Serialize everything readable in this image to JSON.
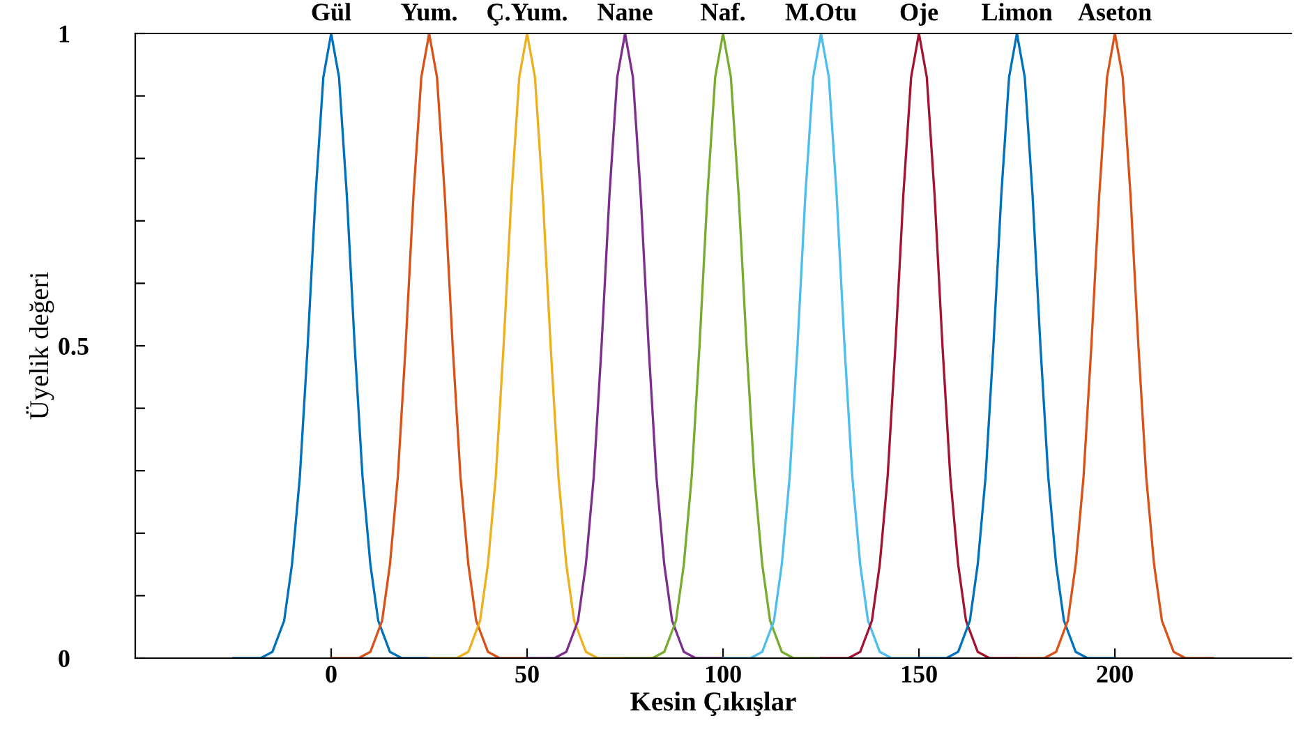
{
  "chart_data": {
    "type": "line",
    "xlabel": "Kesin Çıkışlar",
    "ylabel": "Üyelik değeri",
    "xlim": [
      -50,
      245
    ],
    "ylim": [
      0,
      1
    ],
    "xticks": [
      0,
      50,
      100,
      150,
      200
    ],
    "yticks": [
      0,
      {
        "value": 0.1,
        "label": null
      },
      {
        "value": 0.2,
        "label": null
      },
      {
        "value": 0.3,
        "label": null
      },
      {
        "value": 0.4,
        "label": null
      },
      0.5,
      {
        "value": 0.6,
        "label": null
      },
      {
        "value": 0.7,
        "label": null
      },
      {
        "value": 0.8,
        "label": null
      },
      {
        "value": 0.9,
        "label": null
      },
      1
    ],
    "grid": false,
    "legend": false,
    "marker": "none",
    "line_style": "solid",
    "series": [
      {
        "name": "Gül",
        "color": "#0072bd",
        "x": [
          -25,
          -18,
          -15,
          -12,
          -10,
          -8,
          -6,
          -4,
          -2,
          0,
          2,
          4,
          6,
          8,
          10,
          12,
          15,
          18,
          25
        ],
        "values": [
          0,
          0,
          0.01,
          0.06,
          0.15,
          0.29,
          0.5,
          0.74,
          0.93,
          1,
          0.93,
          0.74,
          0.5,
          0.29,
          0.15,
          0.06,
          0.01,
          0,
          0
        ]
      },
      {
        "name": "Yum.",
        "color": "#d95319",
        "x": [
          0,
          7,
          10,
          13,
          15,
          17,
          19,
          21,
          23,
          25,
          27,
          29,
          31,
          33,
          35,
          37,
          40,
          43,
          50
        ],
        "values": [
          0,
          0,
          0.01,
          0.06,
          0.15,
          0.29,
          0.5,
          0.74,
          0.93,
          1,
          0.93,
          0.74,
          0.5,
          0.29,
          0.15,
          0.06,
          0.01,
          0,
          0
        ]
      },
      {
        "name": "Ç.Yum.",
        "color": "#edb120",
        "x": [
          25,
          32,
          35,
          38,
          40,
          42,
          44,
          46,
          48,
          50,
          52,
          54,
          56,
          58,
          60,
          62,
          65,
          68,
          75
        ],
        "values": [
          0,
          0,
          0.01,
          0.06,
          0.15,
          0.29,
          0.5,
          0.74,
          0.93,
          1,
          0.93,
          0.74,
          0.5,
          0.29,
          0.15,
          0.06,
          0.01,
          0,
          0
        ]
      },
      {
        "name": "Nane",
        "color": "#7e2f8e",
        "x": [
          50,
          57,
          60,
          63,
          65,
          67,
          69,
          71,
          73,
          75,
          77,
          79,
          81,
          83,
          85,
          87,
          90,
          93,
          100
        ],
        "values": [
          0,
          0,
          0.01,
          0.06,
          0.15,
          0.29,
          0.5,
          0.74,
          0.93,
          1,
          0.93,
          0.74,
          0.5,
          0.29,
          0.15,
          0.06,
          0.01,
          0,
          0
        ]
      },
      {
        "name": "Naf.",
        "color": "#77ac30",
        "x": [
          75,
          82,
          85,
          88,
          90,
          92,
          94,
          96,
          98,
          100,
          102,
          104,
          106,
          108,
          110,
          112,
          115,
          118,
          125
        ],
        "values": [
          0,
          0,
          0.01,
          0.06,
          0.15,
          0.29,
          0.5,
          0.74,
          0.93,
          1,
          0.93,
          0.74,
          0.5,
          0.29,
          0.15,
          0.06,
          0.01,
          0,
          0
        ]
      },
      {
        "name": "M.Otu",
        "color": "#4dbeee",
        "x": [
          100,
          107,
          110,
          113,
          115,
          117,
          119,
          121,
          123,
          125,
          127,
          129,
          131,
          133,
          135,
          137,
          140,
          143,
          150
        ],
        "values": [
          0,
          0,
          0.01,
          0.06,
          0.15,
          0.29,
          0.5,
          0.74,
          0.93,
          1,
          0.93,
          0.74,
          0.5,
          0.29,
          0.15,
          0.06,
          0.01,
          0,
          0
        ]
      },
      {
        "name": "Oje",
        "color": "#a2142f",
        "x": [
          125,
          132,
          135,
          138,
          140,
          142,
          144,
          146,
          148,
          150,
          152,
          154,
          156,
          158,
          160,
          162,
          165,
          168,
          175
        ],
        "values": [
          0,
          0,
          0.01,
          0.06,
          0.15,
          0.29,
          0.5,
          0.74,
          0.93,
          1,
          0.93,
          0.74,
          0.5,
          0.29,
          0.15,
          0.06,
          0.01,
          0,
          0
        ]
      },
      {
        "name": "Limon",
        "color": "#0072bd",
        "x": [
          150,
          157,
          160,
          163,
          165,
          167,
          169,
          171,
          173,
          175,
          177,
          179,
          181,
          183,
          185,
          187,
          190,
          193,
          200
        ],
        "values": [
          0,
          0,
          0.01,
          0.06,
          0.15,
          0.29,
          0.5,
          0.74,
          0.93,
          1,
          0.93,
          0.74,
          0.5,
          0.29,
          0.15,
          0.06,
          0.01,
          0,
          0
        ]
      },
      {
        "name": "Aseton",
        "color": "#d95319",
        "x": [
          175,
          182,
          185,
          188,
          190,
          192,
          194,
          196,
          198,
          200,
          202,
          204,
          206,
          208,
          210,
          212,
          215,
          218,
          225
        ],
        "values": [
          0,
          0,
          0.01,
          0.06,
          0.15,
          0.29,
          0.5,
          0.74,
          0.93,
          1,
          0.93,
          0.74,
          0.5,
          0.29,
          0.15,
          0.06,
          0.01,
          0,
          0
        ]
      }
    ]
  }
}
